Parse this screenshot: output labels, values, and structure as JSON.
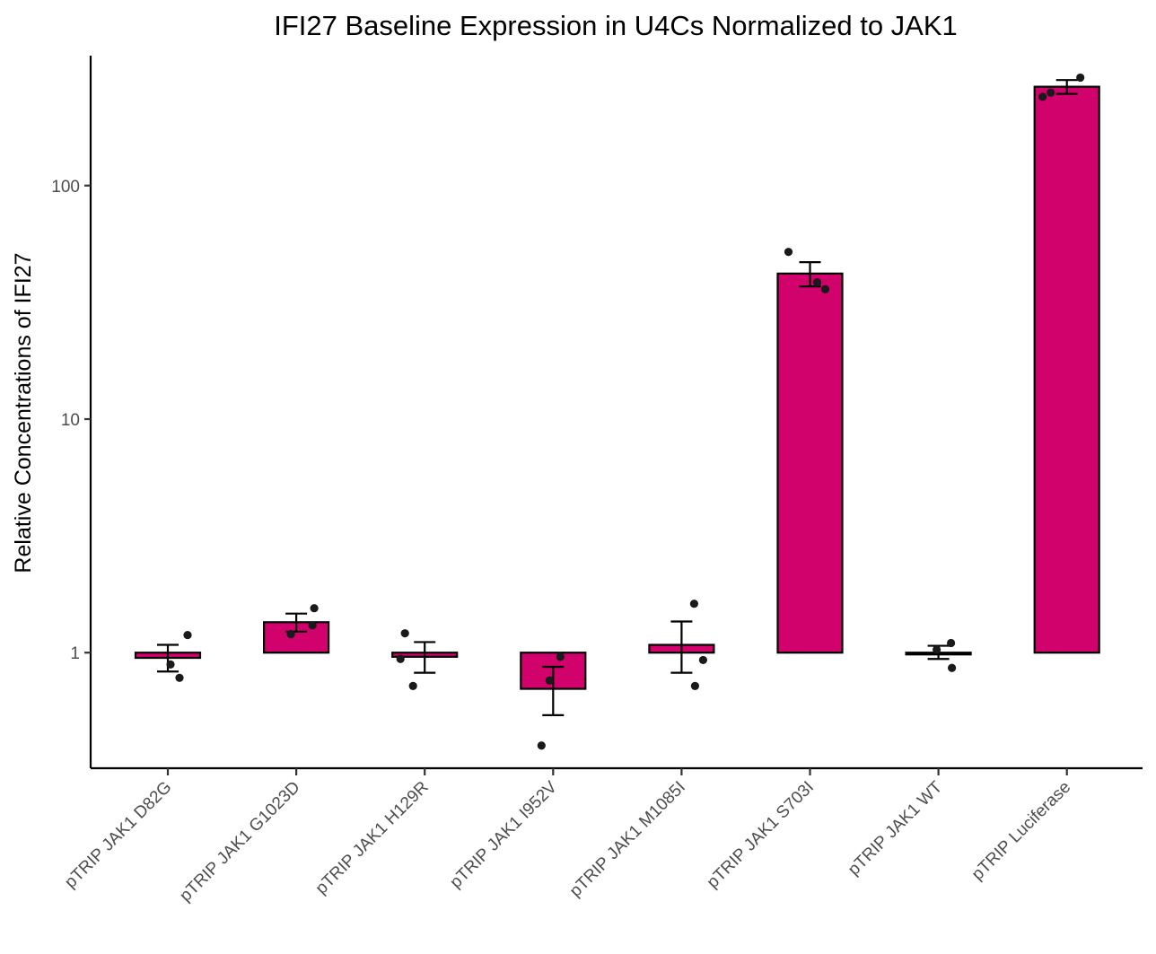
{
  "chart_data": {
    "type": "bar",
    "title": "IFI27 Baseline Expression in U4Cs Normalized to JAK1",
    "xlabel": "",
    "ylabel": "Relative Concentrations of IFI27",
    "y_scale": "log10",
    "ylim": [
      0.32,
      360
    ],
    "yticks": [
      1,
      10,
      100
    ],
    "ytick_labels": [
      "1",
      "10",
      "100"
    ],
    "bar_baseline": 1,
    "grid": false,
    "legend": "none",
    "categories": [
      "pTRIP JAK1 D82G",
      "pTRIP JAK1 G1023D",
      "pTRIP JAK1 H129R",
      "pTRIP JAK1 I952V",
      "pTRIP JAK1 M1085I",
      "pTRIP JAK1 S703I",
      "pTRIP JAK1 WT",
      "pTRIP Luciferase"
    ],
    "values": [
      0.95,
      1.35,
      0.96,
      0.7,
      1.08,
      42,
      1.0,
      265
    ],
    "error_low": [
      0.83,
      1.23,
      0.82,
      0.54,
      0.82,
      37,
      0.94,
      247
    ],
    "error_high": [
      1.08,
      1.47,
      1.11,
      0.87,
      1.36,
      47,
      1.07,
      283
    ],
    "points": [
      [
        1.19,
        0.89,
        0.78
      ],
      [
        1.2,
        1.31,
        1.55
      ],
      [
        0.94,
        1.21,
        0.72
      ],
      [
        0.96,
        0.76,
        0.4
      ],
      [
        0.72,
        0.93,
        1.62
      ],
      [
        52,
        38.5,
        36
      ],
      [
        1.03,
        1.1,
        0.86
      ],
      [
        290,
        250,
        240
      ]
    ],
    "colors": {
      "bar_fill": "#D1026C",
      "bar_edge": "#000000",
      "point": "#1a1a1a",
      "axis": "#000000"
    }
  }
}
